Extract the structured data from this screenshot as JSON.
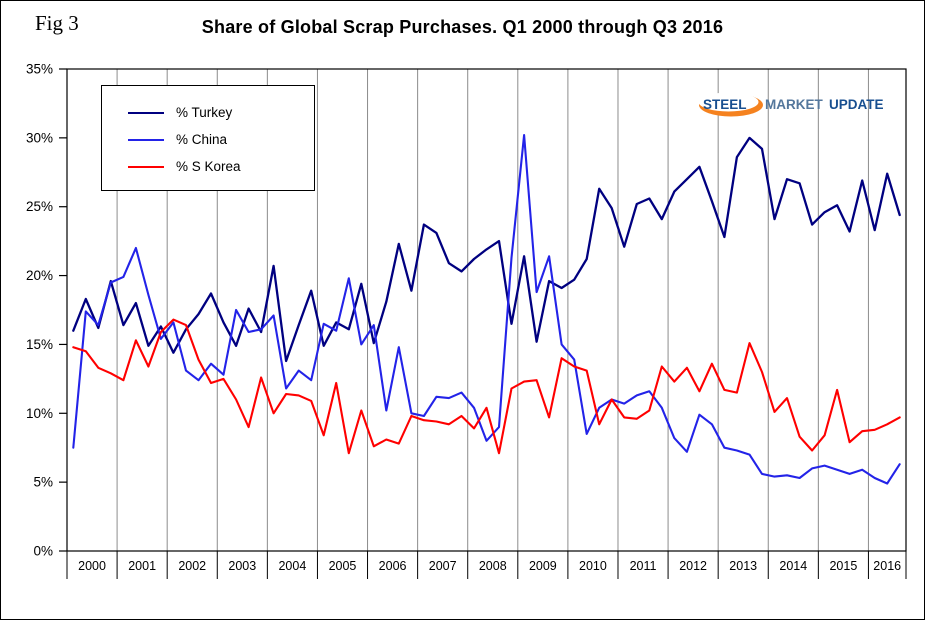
{
  "figure_label": "Fig 3",
  "title": "Share of Global Scrap Purchases. Q1 2000 through Q3 2016",
  "logo": {
    "steel": "STEEL",
    "market": "MARKET",
    "update": "UPDATE"
  },
  "chart_data": {
    "type": "line",
    "title": "Share of Global Scrap Purchases. Q1 2000 through Q3 2016",
    "xlabel": "",
    "ylabel": "",
    "ylim": [
      0,
      35
    ],
    "ytick_labels": [
      "0%",
      "5%",
      "10%",
      "15%",
      "20%",
      "25%",
      "30%",
      "35%"
    ],
    "grid": "vertical-year-gridlines",
    "legend_position": "top-left-inside",
    "years": [
      "2000",
      "2001",
      "2002",
      "2003",
      "2004",
      "2005",
      "2006",
      "2007",
      "2008",
      "2009",
      "2010",
      "2011",
      "2012",
      "2013",
      "2014",
      "2015",
      "2016"
    ],
    "quarters_in_last_year": 3,
    "series": [
      {
        "name": "% Turkey",
        "color": "#000080",
        "values": [
          16.0,
          18.3,
          16.2,
          19.6,
          16.4,
          18.0,
          14.9,
          16.3,
          14.4,
          16.1,
          17.2,
          18.7,
          16.6,
          14.9,
          17.6,
          15.9,
          20.7,
          13.8,
          16.4,
          18.9,
          14.9,
          16.6,
          16.1,
          19.4,
          15.1,
          18.1,
          22.3,
          18.9,
          23.7,
          23.1,
          20.9,
          20.3,
          21.2,
          21.9,
          22.5,
          16.5,
          21.4,
          15.2,
          19.6,
          19.1,
          19.7,
          21.2,
          26.3,
          24.9,
          22.1,
          25.2,
          25.6,
          24.1,
          26.1,
          27.0,
          27.9,
          25.4,
          22.8,
          28.6,
          30.0,
          29.2,
          24.1,
          27.0,
          26.7,
          23.7,
          24.6,
          25.1,
          23.2,
          26.9,
          23.3,
          27.4,
          24.4
        ]
      },
      {
        "name": "% China",
        "color": "#2323E8",
        "values": [
          7.5,
          17.4,
          16.4,
          19.5,
          19.9,
          22.0,
          18.6,
          15.4,
          16.6,
          13.1,
          12.4,
          13.6,
          12.8,
          17.5,
          15.9,
          16.1,
          17.1,
          11.8,
          13.1,
          12.4,
          16.5,
          16.0,
          19.8,
          15.0,
          16.4,
          10.2,
          14.8,
          10.0,
          9.8,
          11.2,
          11.1,
          11.5,
          10.4,
          8.0,
          9.0,
          21.3,
          30.2,
          18.8,
          21.4,
          15.0,
          13.9,
          8.5,
          10.4,
          11.0,
          10.7,
          11.3,
          11.6,
          10.4,
          8.2,
          7.2,
          9.9,
          9.2,
          7.5,
          7.3,
          7.0,
          5.6,
          5.4,
          5.5,
          5.3,
          6.0,
          6.2,
          5.9,
          5.6,
          5.9,
          5.3,
          4.9,
          6.3
        ]
      },
      {
        "name": "% S Korea",
        "color": "#FF0000",
        "values": [
          14.8,
          14.5,
          13.3,
          12.9,
          12.4,
          15.3,
          13.4,
          15.9,
          16.8,
          16.4,
          13.9,
          12.2,
          12.5,
          11.0,
          9.0,
          12.6,
          10.0,
          11.4,
          11.3,
          10.9,
          8.4,
          12.2,
          7.1,
          10.2,
          7.6,
          8.1,
          7.8,
          9.8,
          9.5,
          9.4,
          9.2,
          9.8,
          8.9,
          10.4,
          7.1,
          11.8,
          12.3,
          12.4,
          9.7,
          14.0,
          13.4,
          13.1,
          9.2,
          11.0,
          9.7,
          9.6,
          10.2,
          13.4,
          12.3,
          13.3,
          11.6,
          13.6,
          11.7,
          11.5,
          15.1,
          13.0,
          10.1,
          11.1,
          8.3,
          7.3,
          8.4,
          11.7,
          7.9,
          8.7,
          8.8,
          9.2,
          9.7
        ]
      }
    ]
  }
}
